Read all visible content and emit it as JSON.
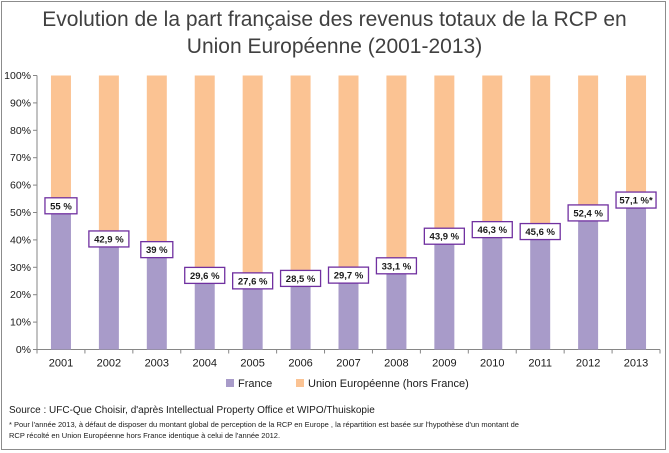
{
  "chart_data": {
    "type": "bar",
    "stacked": true,
    "title_line1": "Evolution de la part française des revenus totaux de la RCP en",
    "title_line2": "Union Européenne (2001-2013)",
    "categories": [
      "2001",
      "2002",
      "2003",
      "2004",
      "2005",
      "2006",
      "2007",
      "2008",
      "2009",
      "2010",
      "2011",
      "2012",
      "2013"
    ],
    "series": [
      {
        "name": "France",
        "color": "#a89bc9",
        "values": [
          55,
          42.9,
          39,
          29.6,
          27.6,
          28.5,
          29.7,
          33.1,
          43.9,
          46.3,
          45.6,
          52.4,
          57.1
        ]
      },
      {
        "name": "Union Européenne (hors France)",
        "color": "#fbc393",
        "values": [
          45,
          57.1,
          61,
          70.4,
          72.4,
          71.5,
          70.3,
          66.9,
          56.1,
          53.7,
          54.4,
          47.6,
          42.9
        ]
      }
    ],
    "data_labels": [
      "55 %",
      "42,9 %",
      "39 %",
      "29,6 %",
      "27,6 %",
      "28,5 %",
      "29,7 %",
      "33,1 %",
      "43,9 %",
      "46,3 %",
      "45,6 %",
      "52,4 %",
      "57,1 %*"
    ],
    "yticks": [
      "0%",
      "10%",
      "20%",
      "30%",
      "40%",
      "50%",
      "60%",
      "70%",
      "80%",
      "90%",
      "100%"
    ],
    "ylim": [
      0,
      100
    ],
    "grid": false,
    "legend_position": "bottom"
  },
  "footer": {
    "source": "Source : UFC-Que Choisir, d'après Intellectual Property Office et WIPO/Thuiskopie",
    "note_line1": "* Pour l'année 2013, à défaut de disposer du montant global de perception de la RCP en Europe , la répartition est basée sur l'hypothèse d'un montant de",
    "note_line2": "RCP récolté en Union Européenne hors France identique à celui de l'année 2012."
  }
}
